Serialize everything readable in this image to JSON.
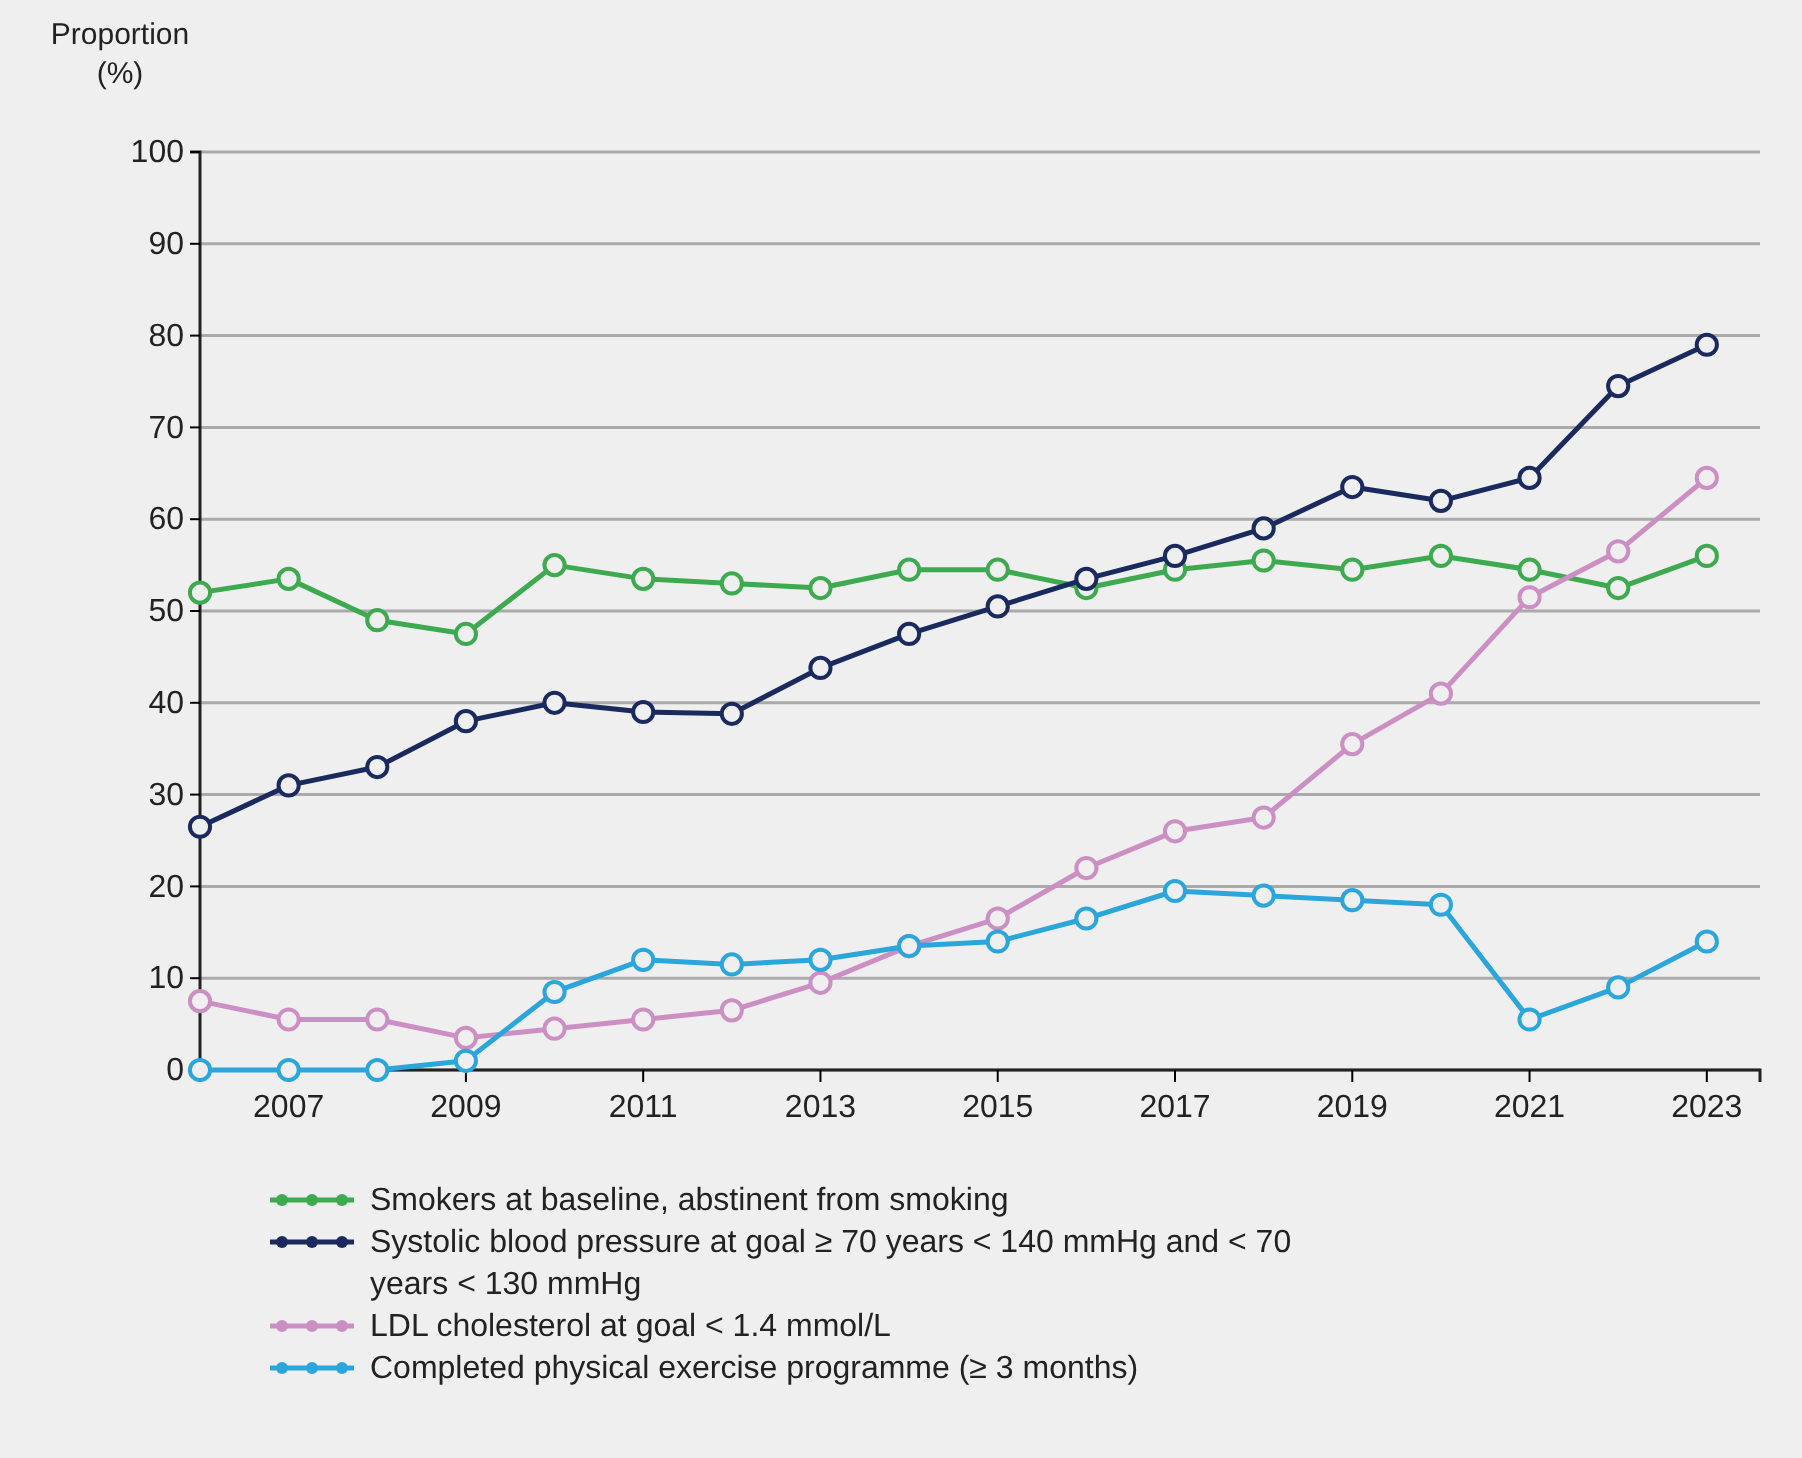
{
  "chart_data": {
    "type": "line",
    "ylabel": "Proportion (%)",
    "x": [
      2006,
      2007,
      2008,
      2009,
      2010,
      2011,
      2012,
      2013,
      2014,
      2015,
      2016,
      2017,
      2018,
      2019,
      2020,
      2021,
      2022,
      2023
    ],
    "xlim": [
      2006,
      2023.6
    ],
    "xticks": [
      2007,
      2009,
      2011,
      2013,
      2015,
      2017,
      2019,
      2021,
      2023
    ],
    "ylim": [
      0,
      100
    ],
    "yticks": [
      0,
      10,
      20,
      30,
      40,
      50,
      60,
      70,
      80,
      90,
      100
    ],
    "grid": "y",
    "marker": "circle",
    "line_style": "solid",
    "legend": "bottom",
    "series": [
      {
        "name": "Smokers at baseline, abstinent from smoking",
        "color": "#3daa4f",
        "values": [
          52,
          53.5,
          49,
          47.5,
          55,
          53.5,
          53,
          52.5,
          54.5,
          54.5,
          52.5,
          54.5,
          55.5,
          54.5,
          56,
          54.5,
          52.5,
          56
        ]
      },
      {
        "name": "Systolic blood pressure at goal ≥ 70 years < 140 mmHg and < 70 years < 130 mmHg",
        "color": "#1b2a5e",
        "values": [
          26.5,
          31,
          33,
          38,
          40,
          39,
          38.8,
          43.8,
          47.5,
          50.5,
          53.5,
          56,
          59,
          63.5,
          62,
          64.5,
          74.5,
          79
        ]
      },
      {
        "name": "LDL cholesterol at goal < 1.4 mmol/L",
        "color": "#cc8fc4",
        "values": [
          7.5,
          5.5,
          5.5,
          3.5,
          4.5,
          5.5,
          6.5,
          9.5,
          13.5,
          16.5,
          22,
          26,
          27.5,
          35.5,
          41,
          51.5,
          56.5,
          64.5
        ]
      },
      {
        "name": "Completed physical exercise programme (≥ 3 months)",
        "color": "#2aa6dd",
        "values": [
          0,
          0,
          0,
          1,
          8.5,
          12,
          11.5,
          12,
          13.5,
          14,
          16.5,
          19.5,
          19,
          18.5,
          18,
          5.5,
          9,
          14
        ]
      }
    ]
  }
}
